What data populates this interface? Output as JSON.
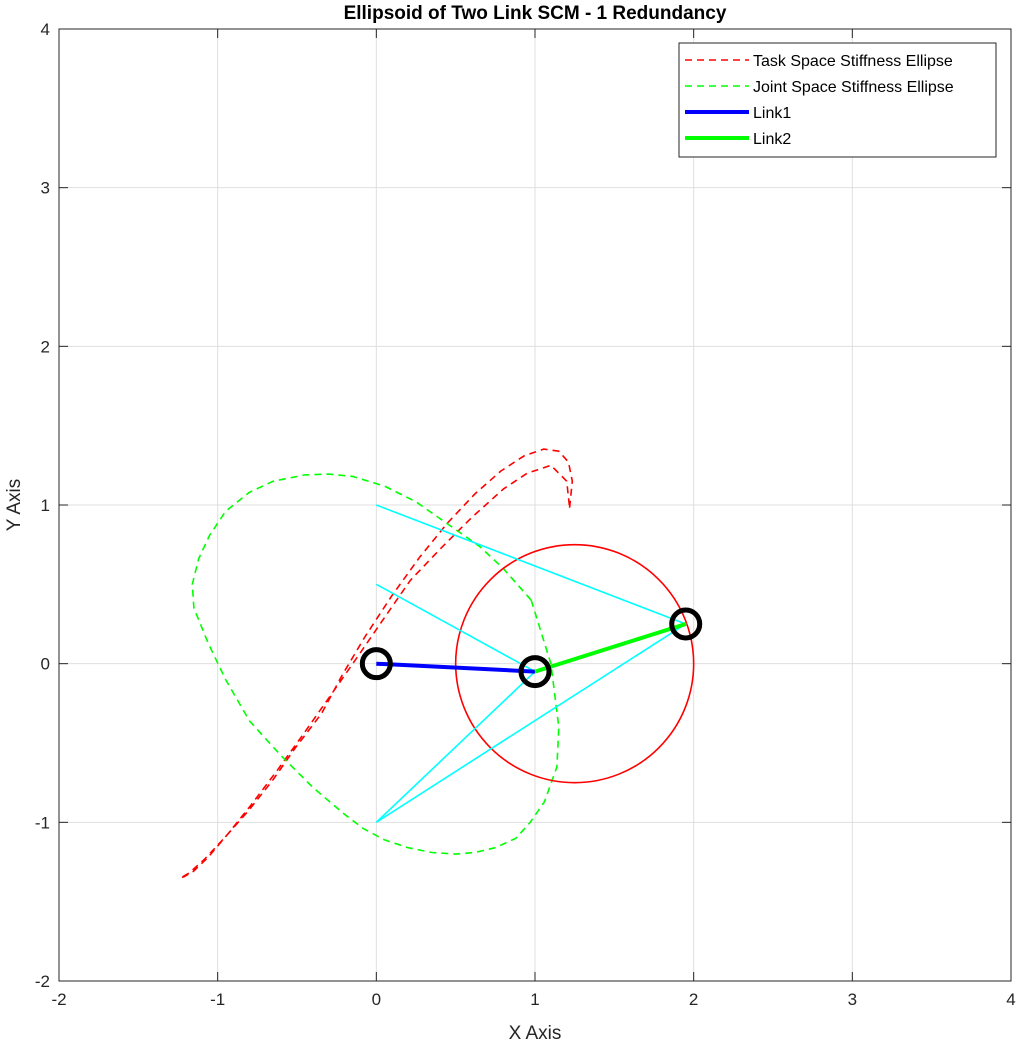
{
  "chart_data": {
    "type": "line",
    "title": "Ellipsoid of Two Link SCM - 1 Redundancy",
    "xlabel": "X Axis",
    "ylabel": "Y Axis",
    "xlim": [
      -2,
      4
    ],
    "ylim": [
      -2,
      4
    ],
    "xticks": [
      -2,
      -1,
      0,
      1,
      2,
      3,
      4
    ],
    "yticks": [
      -2,
      -1,
      0,
      1,
      2,
      3,
      4
    ],
    "xtick_labels": [
      "-2",
      "-1",
      "0",
      "1",
      "2",
      "3",
      "4"
    ],
    "ytick_labels": [
      "-2",
      "-1",
      "0",
      "1",
      "2",
      "3",
      "4"
    ],
    "grid": true,
    "legend_position": "top-right",
    "legend": [
      {
        "label": "Task Space Stiffness Ellipse",
        "color": "#ff0000",
        "style": "dashed"
      },
      {
        "label": "Joint Space Stiffness Ellipse",
        "color": "#00ff00",
        "style": "dashed"
      },
      {
        "label": "Link1",
        "color": "#0000ff",
        "style": "solid"
      },
      {
        "label": "Link2",
        "color": "#00ff00",
        "style": "solid"
      }
    ],
    "series": [
      {
        "name": "Task Space Stiffness Ellipse",
        "kind": "ellipse",
        "style": "dashed",
        "color": "#ff0000",
        "x": [
          1.218,
          1.235,
          1.211,
          1.15,
          1.055,
          0.932,
          0.785,
          0.621,
          0.447,
          0.27,
          0.096,
          -0.068,
          -0.217,
          -0.345,
          -0.51,
          -0.65,
          -0.8,
          -0.95,
          -1.08,
          -1.18,
          -1.234,
          -1.237,
          -1.214,
          -1.153,
          -1.059,
          -0.936,
          -0.788,
          -0.624,
          -0.451,
          -0.274,
          -0.099,
          0.065,
          0.214,
          0.4,
          0.6,
          0.8,
          0.95,
          1.1,
          1.2,
          1.218
        ],
        "y": [
          0.983,
          1.15,
          1.27,
          1.339,
          1.352,
          1.31,
          1.214,
          1.07,
          0.885,
          0.667,
          0.426,
          0.175,
          -0.075,
          -0.314,
          -0.53,
          -0.73,
          -0.92,
          -1.09,
          -1.23,
          -1.32,
          -1.351,
          -1.351,
          -1.344,
          -1.309,
          -1.219,
          -1.074,
          -0.889,
          -0.672,
          -0.431,
          -0.179,
          0.071,
          0.31,
          0.525,
          0.72,
          0.92,
          1.1,
          1.2,
          1.25,
          1.15,
          0.983
        ]
      },
      {
        "name": "Joint Space Stiffness Ellipse",
        "kind": "ellipse",
        "style": "dashed",
        "color": "#00ff00",
        "x": [
          0.976,
          1.1,
          1.15,
          1.138,
          1.06,
          0.97,
          0.88,
          0.75,
          0.62,
          0.5,
          0.35,
          0.2,
          0.05,
          -0.08,
          -0.2,
          -0.4,
          -0.6,
          -0.8,
          -0.95,
          -1.06,
          -1.15,
          -1.16,
          -1.12,
          -1.05,
          -0.95,
          -0.8,
          -0.65,
          -0.45,
          -0.3,
          -0.15,
          0.05,
          0.25,
          0.45,
          0.65,
          0.8,
          0.976
        ],
        "y": [
          0.4,
          0.0,
          -0.4,
          -0.65,
          -0.87,
          -1.0,
          -1.1,
          -1.16,
          -1.19,
          -1.2,
          -1.19,
          -1.16,
          -1.11,
          -1.04,
          -0.95,
          -0.78,
          -0.58,
          -0.36,
          -0.1,
          0.13,
          0.35,
          0.5,
          0.66,
          0.81,
          0.96,
          1.08,
          1.15,
          1.19,
          1.195,
          1.18,
          1.12,
          1.02,
          0.88,
          0.74,
          0.6,
          0.4
        ]
      },
      {
        "name": "",
        "kind": "circle",
        "style": "solid",
        "color": "#ff0000",
        "center": [
          1.25,
          0.0
        ],
        "radius": 0.75
      },
      {
        "name": "",
        "kind": "polyline",
        "style": "solid",
        "color": "#00ffff",
        "x": [
          0.0,
          1.0,
          0.0
        ],
        "y": [
          0.5,
          -0.05,
          -1.0
        ]
      },
      {
        "name": "",
        "kind": "polyline",
        "style": "solid",
        "color": "#00ffff",
        "x": [
          0.0,
          1.95,
          1.0
        ],
        "y": [
          1.0,
          0.25,
          -0.05
        ]
      },
      {
        "name": "",
        "kind": "polyline",
        "style": "solid",
        "color": "#00ffff",
        "x": [
          0.0,
          1.95
        ],
        "y": [
          -1.0,
          0.25
        ]
      },
      {
        "name": "Link1",
        "kind": "polyline",
        "style": "solid",
        "color": "#0000ff",
        "x": [
          0.0,
          1.0
        ],
        "y": [
          0.0,
          -0.05
        ]
      },
      {
        "name": "Link2",
        "kind": "polyline",
        "style": "solid",
        "color": "#00ff00",
        "x": [
          1.0,
          1.95
        ],
        "y": [
          -0.05,
          0.25
        ]
      },
      {
        "name": "",
        "kind": "markers",
        "style": "circle",
        "color": "#000000",
        "x": [
          0.0,
          1.0,
          1.95
        ],
        "y": [
          0.0,
          -0.05,
          0.25
        ]
      }
    ]
  }
}
